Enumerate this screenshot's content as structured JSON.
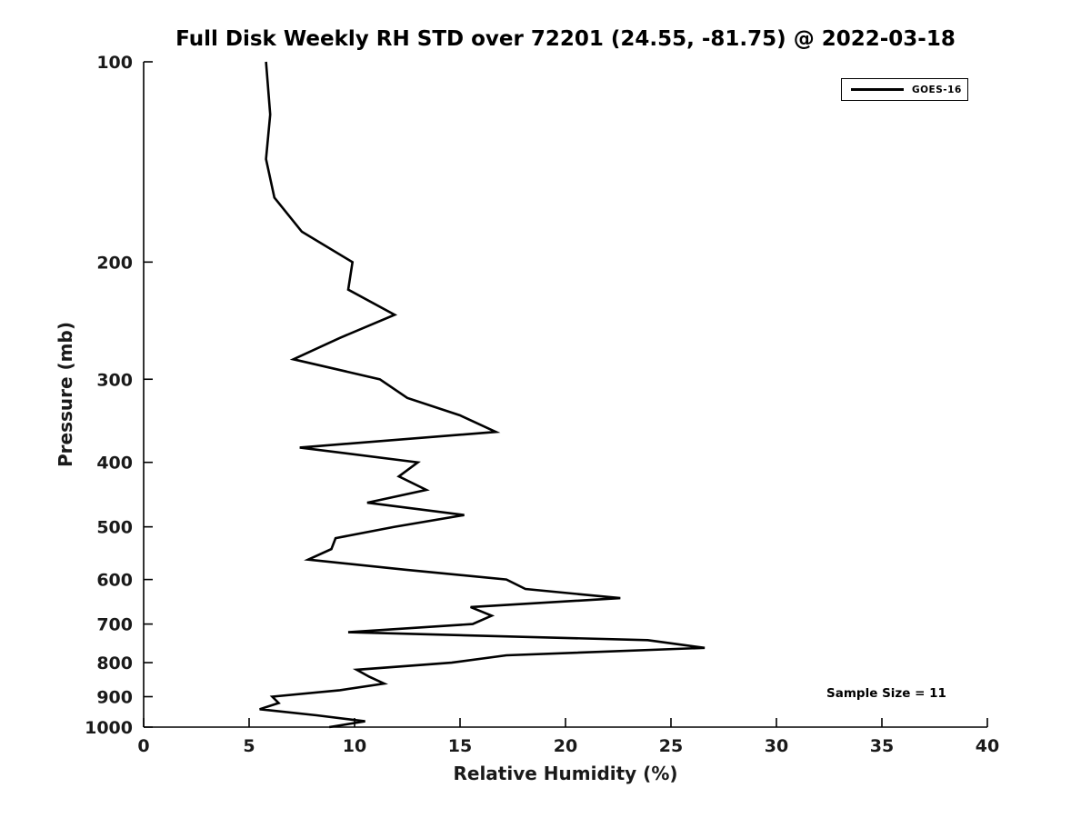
{
  "figure": {
    "title": "Full Disk Weekly RH STD over 72201 (24.55, -81.75) @ 2022-03-18"
  },
  "legend": {
    "position": "top-right",
    "entries": [
      {
        "label": "GOES-16",
        "color": "#000000"
      }
    ]
  },
  "annotation": {
    "text": "Sample Size = 11"
  },
  "chart_data": {
    "type": "line",
    "title": "Full Disk Weekly RH STD over 72201 (24.55, -81.75) @ 2022-03-18",
    "xlabel": "Relative Humidity (%)",
    "ylabel": "Pressure (mb)",
    "xlim": [
      0,
      40
    ],
    "ylim": [
      100,
      1000
    ],
    "x_ticks": [
      0,
      5,
      10,
      15,
      20,
      25,
      30,
      35,
      40
    ],
    "y_ticks": [
      100,
      200,
      300,
      400,
      500,
      600,
      700,
      800,
      900,
      1000
    ],
    "y_scale": "log",
    "y_inverted": true,
    "grid": false,
    "legend_position": "top-right",
    "line_color": "#000000",
    "line_width": 2.6,
    "axis_color": "#000000",
    "sample_size": 11,
    "series": [
      {
        "name": "GOES-16",
        "color": "#000000",
        "points_pressure_rh": [
          [
            100,
            5.8
          ],
          [
            120,
            6.0
          ],
          [
            140,
            5.8
          ],
          [
            160,
            6.2
          ],
          [
            180,
            7.5
          ],
          [
            200,
            9.9
          ],
          [
            220,
            9.7
          ],
          [
            240,
            11.9
          ],
          [
            260,
            9.3
          ],
          [
            280,
            7.1
          ],
          [
            300,
            11.2
          ],
          [
            320,
            12.5
          ],
          [
            340,
            15.0
          ],
          [
            360,
            16.7
          ],
          [
            380,
            7.4
          ],
          [
            400,
            13.0
          ],
          [
            420,
            12.1
          ],
          [
            440,
            13.4
          ],
          [
            460,
            10.6
          ],
          [
            480,
            15.2
          ],
          [
            500,
            11.9
          ],
          [
            520,
            9.1
          ],
          [
            540,
            8.9
          ],
          [
            560,
            7.8
          ],
          [
            580,
            12.4
          ],
          [
            600,
            17.2
          ],
          [
            620,
            18.1
          ],
          [
            640,
            22.6
          ],
          [
            660,
            15.5
          ],
          [
            680,
            16.5
          ],
          [
            700,
            15.6
          ],
          [
            720,
            9.7
          ],
          [
            740,
            23.9
          ],
          [
            760,
            26.6
          ],
          [
            780,
            17.2
          ],
          [
            800,
            14.6
          ],
          [
            820,
            10.1
          ],
          [
            840,
            10.7
          ],
          [
            860,
            11.4
          ],
          [
            880,
            9.3
          ],
          [
            900,
            6.1
          ],
          [
            920,
            6.4
          ],
          [
            940,
            5.5
          ],
          [
            960,
            8.2
          ],
          [
            980,
            10.5
          ],
          [
            1000,
            8.8
          ]
        ]
      }
    ]
  }
}
